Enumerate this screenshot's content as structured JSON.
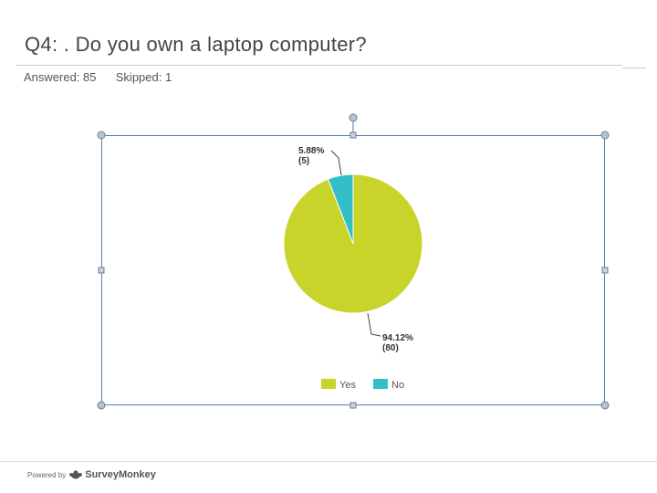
{
  "question": {
    "title": "Q4: . Do you own a laptop computer?",
    "answered_label": "Answered:",
    "answered_value": "85",
    "skipped_label": "Skipped:",
    "skipped_value": "1"
  },
  "colors": {
    "yes": "#c8d42a",
    "no": "#33bfc6",
    "selection_border": "#5a7fb0"
  },
  "chart_data": {
    "type": "pie",
    "categories": [
      "Yes",
      "No"
    ],
    "values": [
      80,
      5
    ],
    "percentages": [
      "94.12%",
      "5.88%"
    ],
    "counts": [
      "(80)",
      "(5)"
    ],
    "legend": "bottom",
    "title": "",
    "xlabel": "",
    "ylabel": ""
  },
  "footer": {
    "powered_by": "Powered by",
    "brand": "SurveyMonkey",
    "logo_icon": "monkey-logo-icon"
  }
}
